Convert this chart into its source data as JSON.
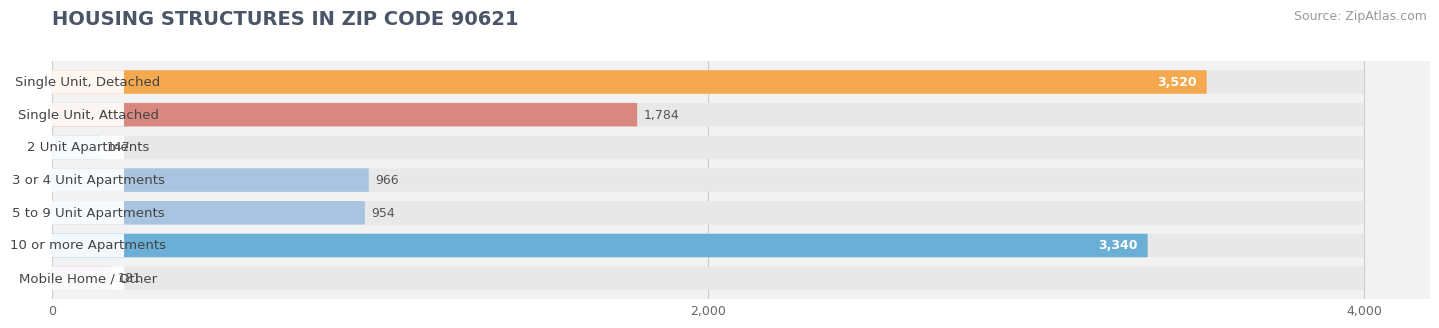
{
  "title": "HOUSING STRUCTURES IN ZIP CODE 90621",
  "source": "Source: ZipAtlas.com",
  "categories": [
    "Single Unit, Detached",
    "Single Unit, Attached",
    "2 Unit Apartments",
    "3 or 4 Unit Apartments",
    "5 to 9 Unit Apartments",
    "10 or more Apartments",
    "Mobile Home / Other"
  ],
  "values": [
    3520,
    1784,
    147,
    966,
    954,
    3340,
    181
  ],
  "bar_colors": [
    "#F5A94E",
    "#D98880",
    "#A8C4E0",
    "#A8C4E0",
    "#A8C4E0",
    "#6BAED6",
    "#C9ACD4"
  ],
  "value_in_bar": [
    true,
    false,
    false,
    false,
    false,
    true,
    false
  ],
  "xlim": [
    0,
    4200
  ],
  "xticks": [
    0,
    2000,
    4000
  ],
  "background_color": "#ffffff",
  "chart_bg_color": "#f2f2f2",
  "bar_bg_color": "#e8e8e8",
  "title_fontsize": 14,
  "source_fontsize": 9,
  "label_fontsize": 9.5,
  "value_fontsize": 9
}
